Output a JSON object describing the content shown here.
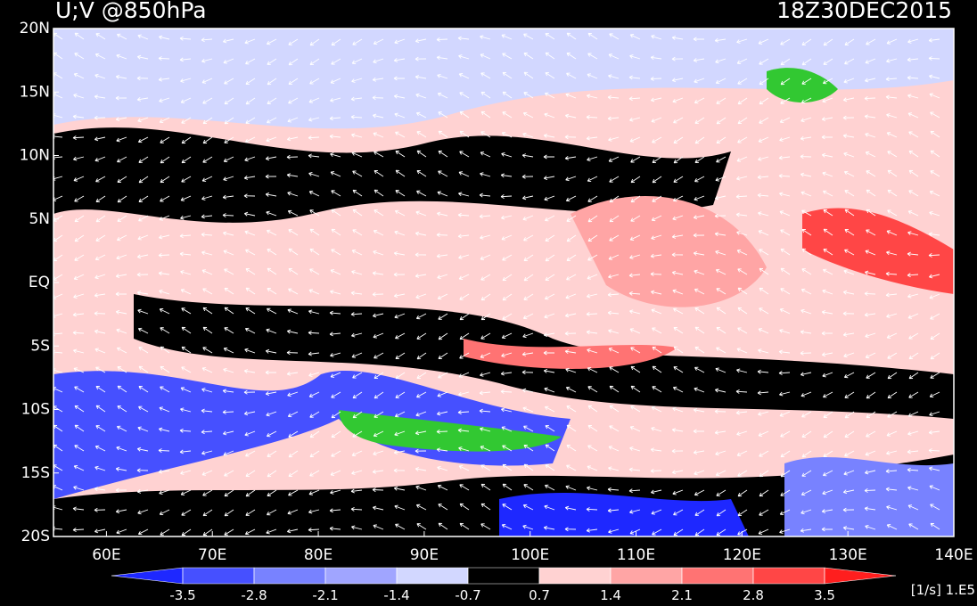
{
  "title": "U;V @850hPa",
  "time": "18Z30DEC2015",
  "map": {
    "xlim": [
      55,
      140
    ],
    "ylim": [
      -20,
      20
    ],
    "xticks": [
      {
        "value": 60,
        "label": "60E"
      },
      {
        "value": 70,
        "label": "70E"
      },
      {
        "value": 80,
        "label": "80E"
      },
      {
        "value": 90,
        "label": "90E"
      },
      {
        "value": 100,
        "label": "100E"
      },
      {
        "value": 110,
        "label": "110E"
      },
      {
        "value": 120,
        "label": "120E"
      },
      {
        "value": 130,
        "label": "130E"
      },
      {
        "value": 140,
        "label": "140E"
      }
    ],
    "yticks": [
      {
        "value": 20,
        "label": "20N"
      },
      {
        "value": 15,
        "label": "15N"
      },
      {
        "value": 10,
        "label": "10N"
      },
      {
        "value": 5,
        "label": "5N"
      },
      {
        "value": 0,
        "label": "EQ"
      },
      {
        "value": -5,
        "label": "5S"
      },
      {
        "value": -10,
        "label": "10S"
      },
      {
        "value": -15,
        "label": "15S"
      },
      {
        "value": -20,
        "label": "20S"
      }
    ]
  },
  "colorbar": {
    "levels": [
      -3.5,
      -2.8,
      -2.1,
      -1.4,
      -0.7,
      0.7,
      1.4,
      2.1,
      2.8,
      3.5
    ],
    "colors": [
      "#1e28ff",
      "#4650ff",
      "#7882ff",
      "#a0a5ff",
      "#d2d7ff",
      "#000000",
      "#ffd2d2",
      "#ffa5a5",
      "#ff7373",
      "#ff4646",
      "#ff1e1e"
    ],
    "unit": "[1/s] 1.E5"
  }
}
